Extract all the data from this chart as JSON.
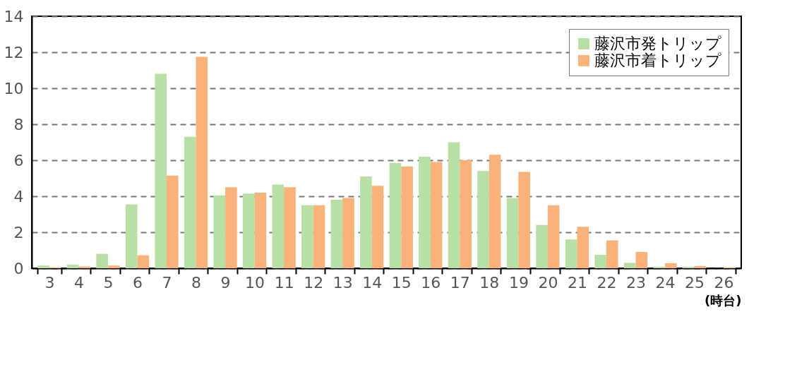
{
  "chart_data": {
    "type": "bar",
    "xlabel": "(時台)",
    "categories": [
      "3",
      "4",
      "5",
      "6",
      "7",
      "8",
      "9",
      "10",
      "11",
      "12",
      "13",
      "14",
      "15",
      "16",
      "17",
      "18",
      "19",
      "20",
      "21",
      "22",
      "23",
      "24",
      "25",
      "26"
    ],
    "series": [
      {
        "name": "藤沢市発トリップ",
        "color": "#b8e0a4",
        "values": [
          0.15,
          0.2,
          0.8,
          3.55,
          10.8,
          7.3,
          4.05,
          4.15,
          4.65,
          3.5,
          3.8,
          5.1,
          5.85,
          6.2,
          7.0,
          5.4,
          3.9,
          2.4,
          1.6,
          0.75,
          0.3,
          0.08,
          0.08,
          null
        ]
      },
      {
        "name": "藤沢市着トリップ",
        "color": "#f9b27a",
        "values": [
          0.05,
          0.1,
          0.15,
          0.72,
          5.15,
          11.75,
          4.5,
          4.2,
          4.5,
          3.5,
          3.9,
          4.58,
          5.65,
          5.9,
          6.0,
          6.3,
          5.35,
          3.5,
          2.3,
          1.55,
          0.9,
          0.28,
          0.12,
          0.05
        ]
      }
    ],
    "ylim": [
      0,
      14
    ],
    "yticks": [
      0,
      2,
      4,
      6,
      8,
      10,
      12,
      14
    ],
    "grid": "y",
    "legend": "top right"
  }
}
